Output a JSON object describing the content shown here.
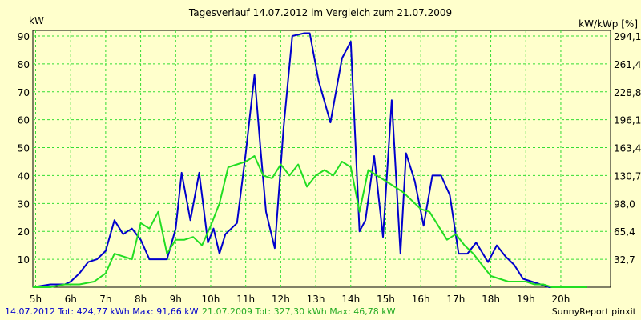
{
  "chart_data": {
    "type": "line",
    "title": "Tagesverlauf 14.07.2012 im Vergleich zum 21.07.2009",
    "ylabel_left": "kW",
    "ylabel_right": "kW/kWp [%]",
    "ylim": [
      0,
      92
    ],
    "y_ticks": [
      10,
      20,
      30,
      40,
      50,
      60,
      70,
      80,
      90
    ],
    "y2_ticks": [
      "32,7",
      "65,4",
      "98,0",
      "130,7",
      "163,4",
      "196,1",
      "228,8",
      "261,4",
      "294,1"
    ],
    "y2_tick_values": [
      10,
      20,
      30,
      40,
      50,
      60,
      70,
      80,
      90
    ],
    "xlim": [
      4.92,
      21.42
    ],
    "x_ticks": [
      5,
      6,
      7,
      8,
      9,
      10,
      11,
      12,
      13,
      14,
      15,
      16,
      17,
      18,
      19,
      20
    ],
    "x_tick_labels": [
      "5h",
      "6h",
      "7h",
      "8h",
      "9h",
      "10h",
      "11h",
      "12h",
      "13h",
      "14h",
      "15h",
      "16h",
      "17h",
      "18h",
      "19h",
      "20h"
    ],
    "series": [
      {
        "name": "14.07.2012",
        "color": "#0000CC",
        "x": [
          4.92,
          5.42,
          5.58,
          5.83,
          6.0,
          6.25,
          6.5,
          6.75,
          7.0,
          7.25,
          7.5,
          7.75,
          8.0,
          8.25,
          8.5,
          8.75,
          9.0,
          9.17,
          9.42,
          9.67,
          9.92,
          10.08,
          10.25,
          10.42,
          10.75,
          11.0,
          11.25,
          11.42,
          11.58,
          11.83,
          12.08,
          12.33,
          12.67,
          12.83,
          13.08,
          13.42,
          13.75,
          14.0,
          14.25,
          14.42,
          14.67,
          14.92,
          15.17,
          15.42,
          15.58,
          15.83,
          16.08,
          16.33,
          16.58,
          16.83,
          17.08,
          17.33,
          17.58,
          17.92,
          18.17,
          18.42,
          18.67,
          18.92,
          19.17,
          19.42,
          19.67,
          19.92,
          20.17,
          20.42,
          20.75
        ],
        "y": [
          0,
          1,
          1,
          1,
          2,
          5,
          9,
          10,
          13,
          24,
          19,
          21,
          17,
          10,
          10,
          10,
          21,
          41,
          24,
          41,
          16,
          21,
          12,
          19,
          23,
          48,
          76,
          50,
          27,
          14,
          57,
          90,
          91,
          91,
          74,
          59,
          82,
          88,
          20,
          24,
          47,
          18,
          67,
          12,
          48,
          38,
          22,
          40,
          40,
          33,
          12,
          12,
          16,
          9,
          15,
          11,
          8,
          3,
          2,
          1,
          0,
          0,
          0,
          0,
          0
        ]
      },
      {
        "name": "21.07.2009",
        "color": "#22DD22",
        "x": [
          4.92,
          5.42,
          5.83,
          6.25,
          6.67,
          7.0,
          7.25,
          7.5,
          7.75,
          8.0,
          8.25,
          8.5,
          8.75,
          9.0,
          9.25,
          9.5,
          9.75,
          10.0,
          10.25,
          10.5,
          10.75,
          11.0,
          11.25,
          11.5,
          11.75,
          12.0,
          12.25,
          12.5,
          12.75,
          13.0,
          13.25,
          13.5,
          13.75,
          14.0,
          14.25,
          14.5,
          14.75,
          15.0,
          15.25,
          15.5,
          15.75,
          16.0,
          16.25,
          16.5,
          16.75,
          17.0,
          17.25,
          17.5,
          17.75,
          18.0,
          18.25,
          18.5,
          18.75,
          19.0,
          19.25,
          19.5,
          19.75,
          20.0,
          20.25,
          20.5,
          20.75
        ],
        "y": [
          0,
          0,
          1,
          1,
          2,
          5,
          12,
          11,
          10,
          23,
          21,
          27,
          12,
          17,
          17,
          18,
          15,
          22,
          30,
          43,
          44,
          45,
          47,
          40,
          39,
          44,
          40,
          44,
          36,
          40,
          42,
          40,
          45,
          43,
          27,
          42,
          40,
          38,
          36,
          34,
          31,
          28,
          27,
          22,
          17,
          19,
          15,
          12,
          8,
          4,
          3,
          2,
          2,
          2,
          1,
          1,
          0,
          0,
          0,
          0,
          0
        ]
      }
    ],
    "grid": true
  },
  "footer": {
    "series1_text": "14.07.2012 Tot: 424,77 kWh Max: 91,66 kW",
    "series2_text": "21.07.2009 Tot: 327,30 kWh Max: 46,78 kW",
    "credit": "SunnyReport pinxit"
  }
}
